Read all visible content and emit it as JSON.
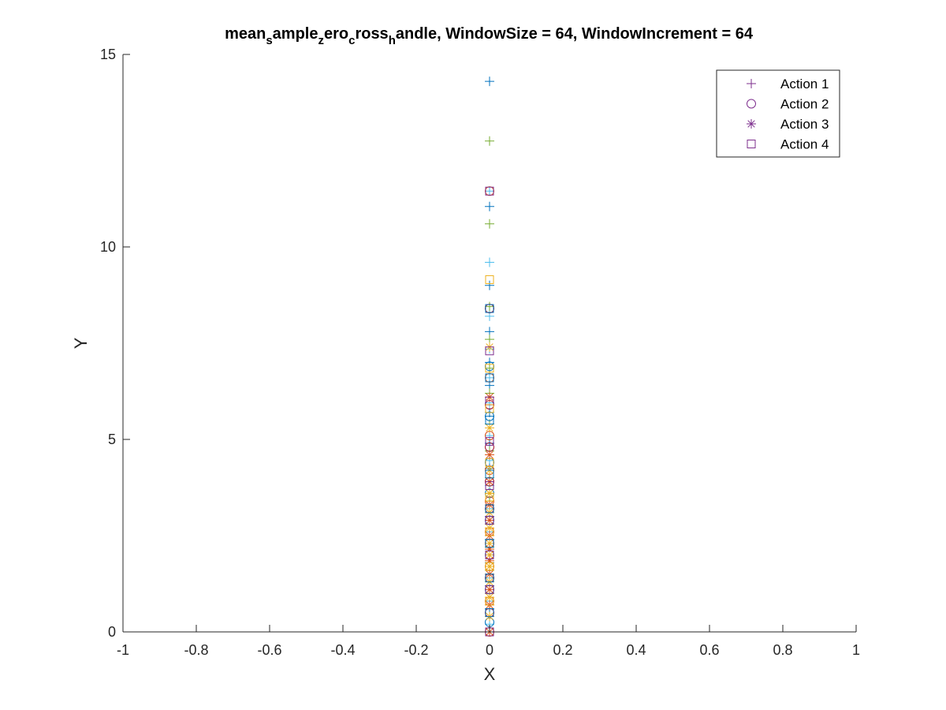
{
  "chart_data": {
    "type": "scatter",
    "title": {
      "parts": [
        {
          "text": "mean",
          "sub": false
        },
        {
          "text": "s",
          "sub": true
        },
        {
          "text": "ample",
          "sub": false
        },
        {
          "text": "z",
          "sub": true
        },
        {
          "text": "ero",
          "sub": false
        },
        {
          "text": "c",
          "sub": true
        },
        {
          "text": "ross",
          "sub": false
        },
        {
          "text": "h",
          "sub": true
        },
        {
          "text": "andle, WindowSize = 64, WindowIncrement = 64",
          "sub": false
        }
      ]
    },
    "xlabel": "X",
    "ylabel": "Y",
    "xlim": [
      -1,
      1
    ],
    "ylim": [
      0,
      15
    ],
    "xticks": [
      -1,
      -0.8,
      -0.6,
      -0.4,
      -0.2,
      0,
      0.2,
      0.4,
      0.6,
      0.8,
      1
    ],
    "xtick_labels": [
      "-1",
      "-0.8",
      "-0.6",
      "-0.4",
      "-0.2",
      "0",
      "0.2",
      "0.4",
      "0.6",
      "0.8",
      "1"
    ],
    "yticks": [
      0,
      5,
      10,
      15
    ],
    "ytick_labels": [
      "0",
      "5",
      "10",
      "15"
    ],
    "grid": false,
    "legend_position": "top-right",
    "legend": [
      {
        "label": "Action 1",
        "marker": "plus",
        "color": "#7E2F8E"
      },
      {
        "label": "Action 2",
        "marker": "circle",
        "color": "#7E2F8E"
      },
      {
        "label": "Action 3",
        "marker": "asterisk",
        "color": "#7E2F8E"
      },
      {
        "label": "Action 4",
        "marker": "square",
        "color": "#7E2F8E"
      }
    ],
    "series": [
      {
        "marker": "plus",
        "colors": [
          "#0072BD",
          "#77AC30",
          "#4DBEEE"
        ],
        "x": 0,
        "y": [
          14.3,
          12.75,
          11.45,
          11.05,
          10.6,
          9.6,
          9.0,
          8.45,
          8.2,
          7.8,
          7.6,
          7.35,
          7.0,
          6.85,
          6.6,
          6.4,
          6.2,
          5.95,
          5.7,
          5.4,
          5.1,
          4.9,
          4.7,
          4.45,
          4.25,
          4.0,
          3.8,
          3.6,
          3.4,
          3.2,
          3.0,
          2.8,
          2.6,
          2.4,
          2.2,
          2.0,
          1.8,
          1.6,
          1.4,
          1.2,
          1.0,
          0.8,
          0.6,
          0.4,
          0.2
        ]
      },
      {
        "marker": "circle",
        "colors": [
          "#D95319",
          "#A2142F",
          "#0072BD"
        ],
        "x": 0,
        "y": [
          11.45,
          8.4,
          6.9,
          6.6,
          5.9,
          5.6,
          5.1,
          4.8,
          4.4,
          4.2,
          3.9,
          3.6,
          3.4,
          3.2,
          2.9,
          2.6,
          2.3,
          2.0,
          1.7,
          1.4,
          1.1,
          0.8,
          0.5,
          0.25,
          0.0
        ]
      },
      {
        "marker": "asterisk",
        "colors": [
          "#EDB120",
          "#D95319"
        ],
        "x": 0,
        "y": [
          7.4,
          6.1,
          5.3,
          4.6,
          4.2,
          3.9,
          3.6,
          3.3,
          3.1,
          2.9,
          2.7,
          2.5,
          2.3,
          2.15,
          2.0,
          1.85,
          1.7,
          1.5,
          1.3,
          1.1,
          0.9,
          0.7,
          0.4,
          0.0
        ]
      },
      {
        "marker": "square",
        "colors": [
          "#7E2F8E",
          "#EDB120",
          "#0072BD"
        ],
        "x": 0,
        "y": [
          11.45,
          9.15,
          8.4,
          7.3,
          6.85,
          6.6,
          6.0,
          5.8,
          5.5,
          4.95,
          4.4,
          4.1,
          3.8,
          3.5,
          3.2,
          2.9,
          2.6,
          2.3,
          2.0,
          1.7,
          1.4,
          1.1,
          0.8,
          0.5,
          0.0
        ]
      }
    ]
  }
}
